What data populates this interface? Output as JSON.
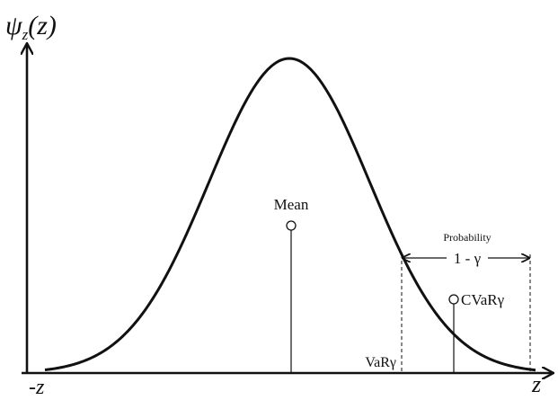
{
  "axis": {
    "y_label": {
      "symbol": "ψ",
      "subscript": "z",
      "argument": "(z)"
    },
    "x_left": "-z",
    "x_right": "z"
  },
  "labels": {
    "mean": "Mean",
    "probability": "Probability",
    "tail": "1 - γ",
    "cvar": "CVaRγ",
    "var": "VaRγ"
  }
}
